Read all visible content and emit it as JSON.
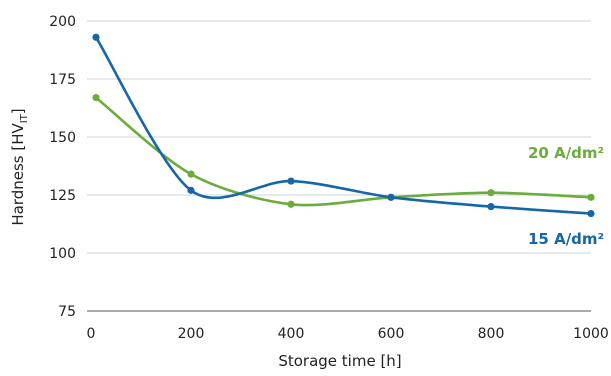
{
  "chart_data": {
    "type": "line",
    "xlabel": "Storage time [h]",
    "ylabel": {
      "main": "Hardness [HV",
      "sub": "IT",
      "close": "]"
    },
    "xlim": [
      0,
      1000
    ],
    "ylim": [
      75,
      200
    ],
    "x_ticks": [
      "0",
      "200",
      "400",
      "600",
      "800",
      "1000"
    ],
    "y_ticks": [
      "75",
      "100",
      "125",
      "150",
      "175",
      "200"
    ],
    "grid": "horizontal",
    "legend": "inline-right",
    "series": [
      {
        "name": "15 A/dm²",
        "color": "#1766a8",
        "x": [
          10,
          200,
          400,
          600,
          800,
          1000
        ],
        "y": [
          193,
          127,
          131,
          124,
          120,
          117
        ]
      },
      {
        "name": "20 A/dm²",
        "color": "#6aad3c",
        "x": [
          10,
          200,
          400,
          600,
          800,
          1000
        ],
        "y": [
          167,
          134,
          121,
          124,
          126,
          124
        ]
      }
    ]
  }
}
